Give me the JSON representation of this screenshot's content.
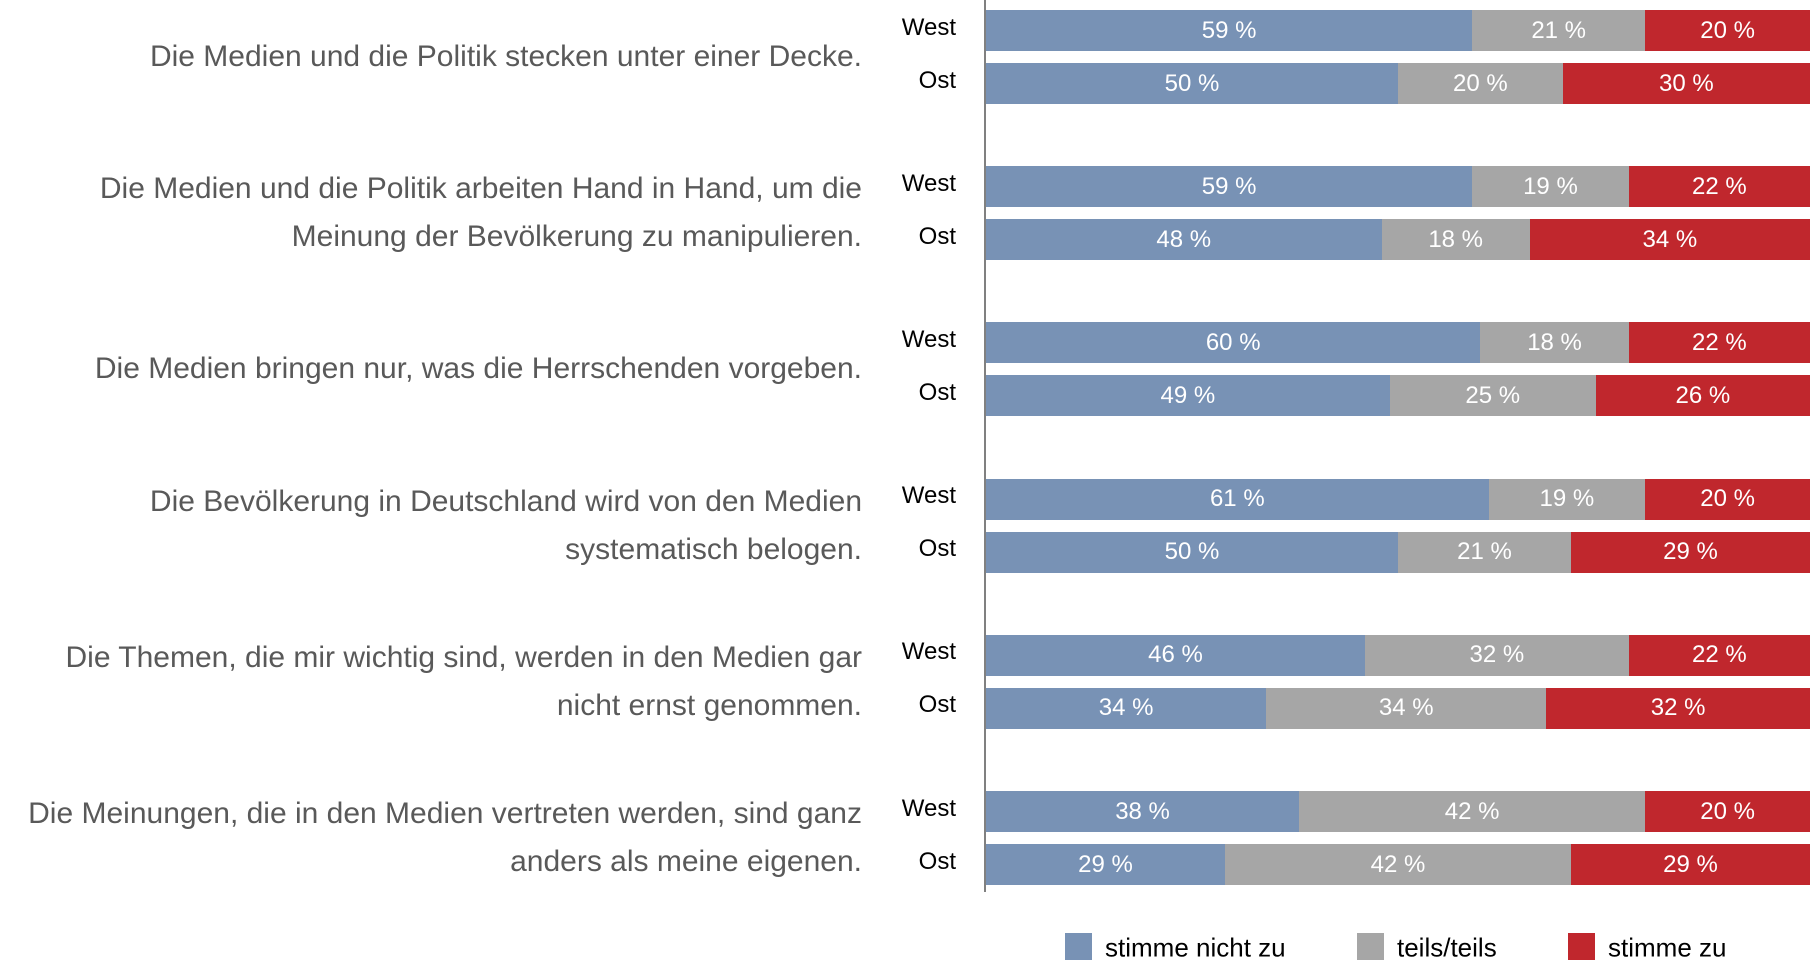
{
  "chart_data": {
    "type": "stacked-bar-horizontal",
    "groups": [
      "Die Medien und die Politik stecken unter einer Decke.",
      "Die Medien und die Politik arbeiten Hand in Hand, um die Meinung der Bevölkerung zu manipulieren.",
      "Die Medien bringen nur, was die Herrschenden vorgeben.",
      "Die Bevölkerung in Deutschland wird von den Medien systematisch belogen.",
      "Die Themen, die mir wichtig sind, werden in den Medien gar nicht ernst genommen.",
      "Die Meinungen, die in den Medien vertreten werden, sind ganz anders als meine eigenen."
    ],
    "categories": [
      "West",
      "Ost",
      "West",
      "Ost",
      "West",
      "Ost",
      "West",
      "Ost",
      "West",
      "Ost",
      "West",
      "Ost"
    ],
    "xlim": [
      0,
      100
    ],
    "series": [
      {
        "name": "stimme nicht zu",
        "color": "#7892b5",
        "values": [
          59,
          50,
          59,
          48,
          60,
          49,
          61,
          50,
          46,
          34,
          38,
          29
        ],
        "value_labels": [
          "59 %",
          "50 %",
          "59 %",
          "48 %",
          "60 %",
          "49 %",
          "61 %",
          "50 %",
          "46 %",
          "34 %",
          "38 %",
          "29 %"
        ]
      },
      {
        "name": "teils/teils",
        "color": "#a6a6a6",
        "values": [
          21,
          20,
          19,
          18,
          18,
          25,
          19,
          21,
          32,
          34,
          42,
          42
        ],
        "value_labels": [
          "21 %",
          "20 %",
          "19 %",
          "18 %",
          "18 %",
          "25 %",
          "19 %",
          "21 %",
          "32 %",
          "34 %",
          "42 %",
          "42 %"
        ]
      },
      {
        "name": "stimme zu",
        "color": "#c0272d",
        "values": [
          20,
          30,
          22,
          34,
          22,
          26,
          20,
          29,
          22,
          32,
          20,
          29
        ],
        "value_labels": [
          "20 %",
          "30 %",
          "22 %",
          "34 %",
          "22 %",
          "26 %",
          "20 %",
          "29 %",
          "22 %",
          "32 %",
          "20 %",
          "29 %"
        ]
      }
    ],
    "legend": "bottom"
  }
}
